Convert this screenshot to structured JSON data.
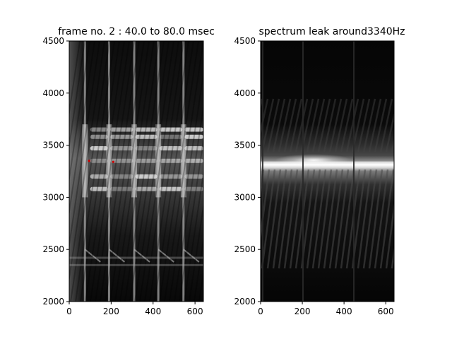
{
  "chart_data": [
    {
      "type": "heatmap",
      "title": "frame no. 2 : 40.0 to 80.0 msec",
      "xlabel": "",
      "ylabel": "",
      "xlim": [
        0,
        640
      ],
      "ylim": [
        2000,
        4500
      ],
      "xticks": [
        0,
        200,
        400,
        600
      ],
      "yticks": [
        2000,
        2500,
        3000,
        3500,
        4000,
        4500
      ],
      "xtick_labels": [
        "0",
        "200",
        "400",
        "600"
      ],
      "ytick_labels": [
        "2000",
        "2500",
        "3000",
        "3500",
        "4000",
        "4500"
      ],
      "colormap": "gray",
      "bright_band_hz": [
        3000,
        3700
      ],
      "vertical_streaks_x": [
        75,
        190,
        310,
        425,
        545
      ],
      "harmonic_rows_hz": [
        3080,
        3200,
        3350,
        3470,
        3580,
        3650
      ],
      "markers": [
        {
          "x": 95,
          "y": 3350,
          "color": "#cc0000"
        },
        {
          "x": 210,
          "y": 3340,
          "color": "#cc0000"
        }
      ]
    },
    {
      "type": "heatmap",
      "title": "spectrum leak around3340Hz",
      "xlabel": "",
      "ylabel": "",
      "xlim": [
        0,
        640
      ],
      "ylim": [
        2000,
        4500
      ],
      "xticks": [
        0,
        200,
        400,
        600
      ],
      "yticks": [
        2000,
        2500,
        3000,
        3500,
        4000,
        4500
      ],
      "xtick_labels": [
        "0",
        "200",
        "400",
        "600"
      ],
      "ytick_labels": [
        "2000",
        "2500",
        "3000",
        "3500",
        "4000",
        "4500"
      ],
      "colormap": "gray",
      "center_hz": 3340,
      "band_peak_x": 250
    }
  ]
}
